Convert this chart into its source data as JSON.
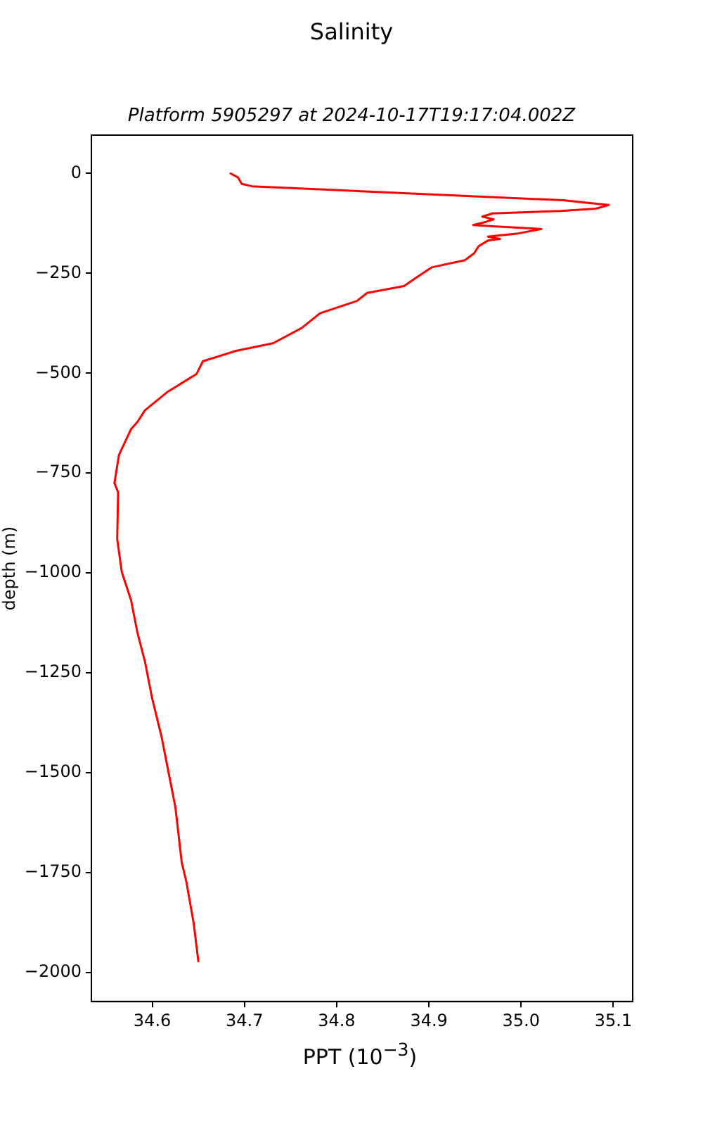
{
  "chart_data": {
    "type": "line",
    "title": "Salinity",
    "subtitle": "Platform 5905297 at 2024-10-17T19:17:04.002Z",
    "xlabel": "PPT (10$^{−3}$)",
    "ylabel": "depth (m)",
    "series": [
      {
        "color": "#ff0000",
        "x": [
          34.685,
          34.693,
          34.697,
          34.708,
          35.045,
          35.095,
          35.081,
          35.043,
          34.969,
          34.958,
          34.97,
          34.962,
          34.948,
          34.969,
          35.022,
          34.997,
          34.964,
          34.977,
          34.964,
          34.954,
          34.949,
          34.939,
          34.903,
          34.888,
          34.873,
          34.833,
          34.822,
          34.782,
          34.762,
          34.731,
          34.691,
          34.655,
          34.648,
          34.617,
          34.592,
          34.584,
          34.577,
          34.564,
          34.559,
          34.563,
          34.562,
          34.567,
          34.577,
          34.584,
          34.592,
          34.6,
          34.61,
          34.617,
          34.625,
          34.632,
          34.637,
          34.645,
          34.65
        ],
        "values": [
          0,
          -10,
          -26,
          -32,
          -67,
          -79,
          -88,
          -94,
          -100,
          -108,
          -115,
          -121,
          -129,
          -132,
          -139,
          -150,
          -158,
          -164,
          -168,
          -182,
          -200,
          -217,
          -235,
          -258,
          -282,
          -299,
          -319,
          -350,
          -387,
          -425,
          -444,
          -470,
          -502,
          -546,
          -593,
          -622,
          -640,
          -704,
          -775,
          -798,
          -915,
          -998,
          -1068,
          -1150,
          -1221,
          -1315,
          -1409,
          -1491,
          -1585,
          -1725,
          -1773,
          -1878,
          -1972
        ]
      }
    ],
    "xlim": [
      34.534,
      35.121
    ],
    "ylim": [
      -2073,
      96
    ],
    "xticks": [
      34.6,
      34.7,
      34.8,
      34.9,
      {
        "value": 35,
        "label": "35.0"
      },
      35.1
    ],
    "yticks": [
      {
        "value": 0,
        "label": "0"
      },
      {
        "value": -250,
        "label": "−250"
      },
      {
        "value": -500,
        "label": "−500"
      },
      {
        "value": -750,
        "label": "−750"
      },
      {
        "value": -1000,
        "label": "−1000"
      },
      {
        "value": -1250,
        "label": "−1250"
      },
      {
        "value": -1500,
        "label": "−1500"
      },
      {
        "value": -1750,
        "label": "−1750"
      },
      {
        "value": -2000,
        "label": "−2000"
      }
    ],
    "line_style": "solid",
    "grid": false,
    "legend": false
  }
}
